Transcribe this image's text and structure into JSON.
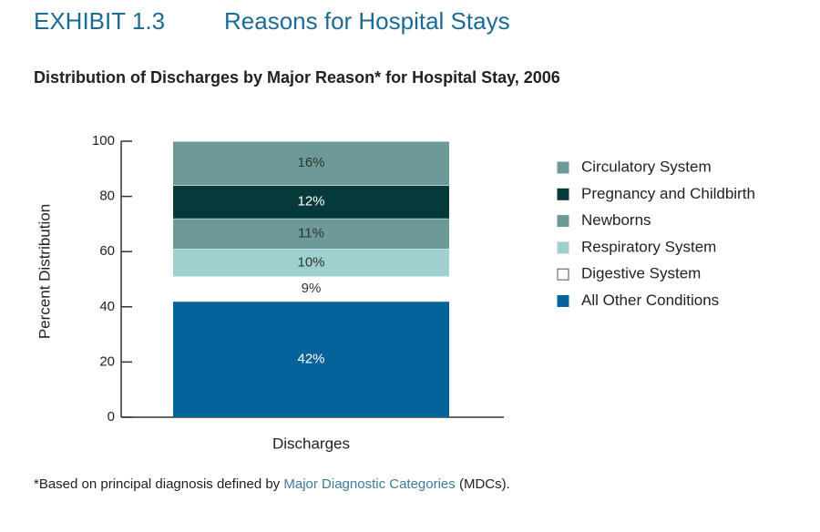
{
  "chart_data": {
    "type": "stacked_bar",
    "exhibit": "EXHIBIT 1.3",
    "title": "Reasons for Hospital Stays",
    "subtitle": "Distribution of Discharges by Major Reason* for Hospital Stay, 2006",
    "ylabel": "Percent Distribution",
    "categories": [
      "Discharges"
    ],
    "series": [
      {
        "name": "Circulatory System",
        "color": "#6b9a99",
        "values": [
          16
        ],
        "value_labels": [
          "16%"
        ]
      },
      {
        "name": "Pregnancy and Childbirth",
        "color": "#05393a",
        "values": [
          12
        ],
        "value_labels": [
          "12%"
        ]
      },
      {
        "name": "Newborns",
        "color": "#6b9a99",
        "values": [
          11
        ],
        "value_labels": [
          "11%"
        ]
      },
      {
        "name": "Respiratory System",
        "color": "#9fd0d0",
        "values": [
          10
        ],
        "value_labels": [
          "10%"
        ]
      },
      {
        "name": "Digestive System",
        "color": "#ffffff",
        "values": [
          9
        ],
        "value_labels": [
          "9%"
        ]
      },
      {
        "name": "All Other Conditions",
        "color": "#04639b",
        "values": [
          42
        ],
        "value_labels": [
          "42%"
        ]
      }
    ],
    "ylim": [
      0,
      100
    ],
    "yticks": [
      0,
      20,
      40,
      60,
      80,
      100
    ],
    "legend": "right",
    "footnote": {
      "before": "*Based on principal diagnosis defined by ",
      "link": "Major Diagnostic Categories",
      "after": " (MDCs)."
    }
  }
}
